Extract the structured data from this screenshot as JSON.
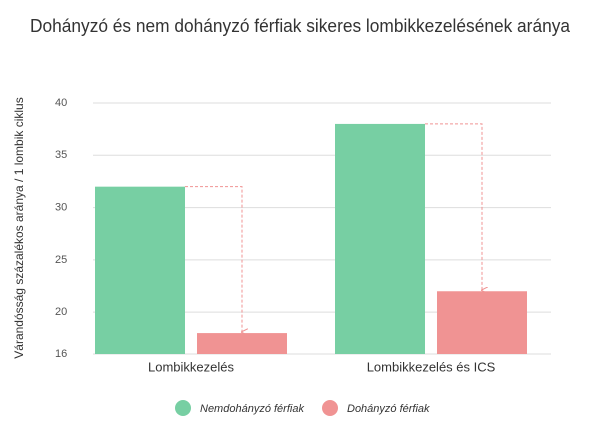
{
  "chart_data": {
    "type": "bar",
    "title": "Dohányzó és nem dohányzó férfiak sikeres lombikkezelésének aránya",
    "y_label": "Várandósság százalékos aránya / 1 lombik ciklus",
    "categories": [
      "Lombikkezelés",
      "Lombikkezelés és ICS"
    ],
    "series": [
      {
        "name": "Nemdohányzó férfiak",
        "color": "#77cfa3",
        "values": [
          32,
          38
        ]
      },
      {
        "name": "Dohányzó férfiak",
        "color": "#f09393",
        "values": [
          18,
          22
        ]
      }
    ],
    "ylim": [
      16,
      40
    ],
    "yticks": [
      16,
      20,
      25,
      30,
      35,
      40
    ],
    "grid": true
  }
}
